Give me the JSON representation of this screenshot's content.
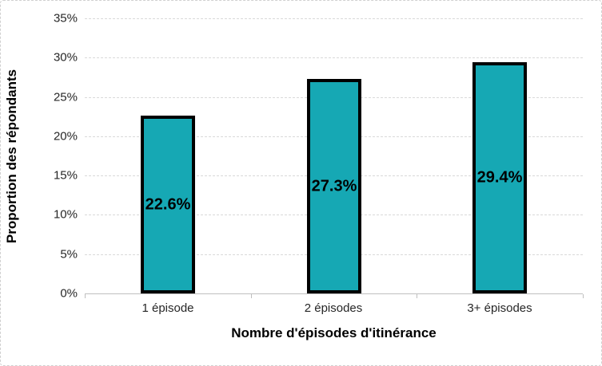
{
  "chart_data": {
    "type": "bar",
    "title": "",
    "categories": [
      "1 épisode",
      "2 épisodes",
      "3+ épisodes"
    ],
    "values": [
      22.6,
      27.3,
      29.4
    ],
    "value_labels": [
      "22.6%",
      "27.3%",
      "29.4%"
    ],
    "xlabel": "Nombre d'épisodes d'itinérance",
    "ylabel": "Proportion des répondants",
    "ylim": [
      0,
      35
    ],
    "ytick_step": 5,
    "ytick_labels": [
      "0%",
      "5%",
      "10%",
      "15%",
      "20%",
      "25%",
      "30%",
      "35%"
    ],
    "grid": true,
    "legend": false,
    "colors": {
      "bar_fill": "#16A8B4",
      "bar_border": "#000000",
      "gridline": "#D9D9D9",
      "axis_line": "#BFBFBF",
      "tick_text": "#262626",
      "label_text": "#000000"
    }
  }
}
